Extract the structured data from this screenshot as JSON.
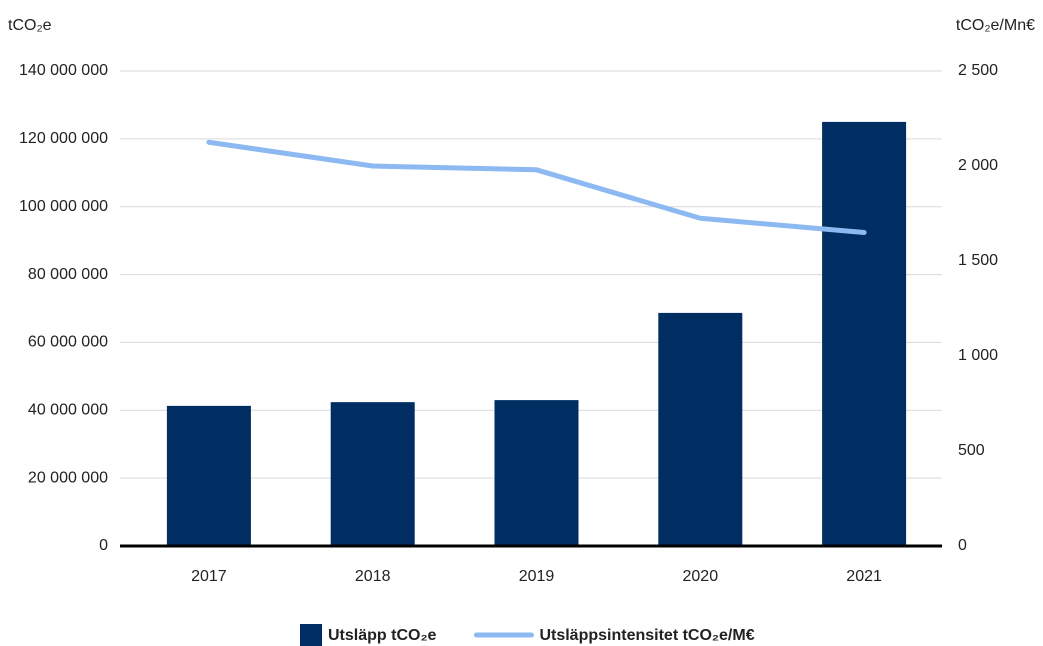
{
  "chart_data": {
    "type": "bar",
    "y_label": "tCO₂e",
    "y2_label": "tCO₂e/Mn€",
    "categories": [
      "2017",
      "2018",
      "2019",
      "2020",
      "2021"
    ],
    "series": [
      {
        "name": "Utsläpp tCO₂e",
        "type": "bar",
        "color": "#002d62",
        "values": [
          41300000,
          42400000,
          43000000,
          68700000,
          125000000
        ]
      },
      {
        "name": "Utsläppsintensitet tCO₂e/M€",
        "type": "line",
        "axis": "y2",
        "color": "#8cb9f2",
        "values": [
          2125,
          2000,
          1980,
          1725,
          1650
        ]
      }
    ],
    "ylim": [
      0,
      140000000
    ],
    "yticks": [
      0,
      {
        "value": 20000000,
        "label": "20 000 000"
      },
      {
        "value": 40000000,
        "label": "40 000 000"
      },
      {
        "value": 60000000,
        "label": "60 000 000"
      },
      {
        "value": 80000000,
        "label": "80 000 000"
      },
      {
        "value": 100000000,
        "label": "100 000 000"
      },
      {
        "value": 120000000,
        "label": "120 000 000"
      },
      {
        "value": 140000000,
        "label": "140 000 000"
      }
    ],
    "y2lim": [
      0,
      2500
    ],
    "y2ticks": [
      0,
      500,
      {
        "value": 1000,
        "label": "1 000"
      },
      {
        "value": 1500,
        "label": "1 500"
      },
      {
        "value": 2000,
        "label": "2 000"
      },
      {
        "value": 2500,
        "label": "2 500"
      }
    ],
    "grid": true,
    "legend": "bottom"
  }
}
